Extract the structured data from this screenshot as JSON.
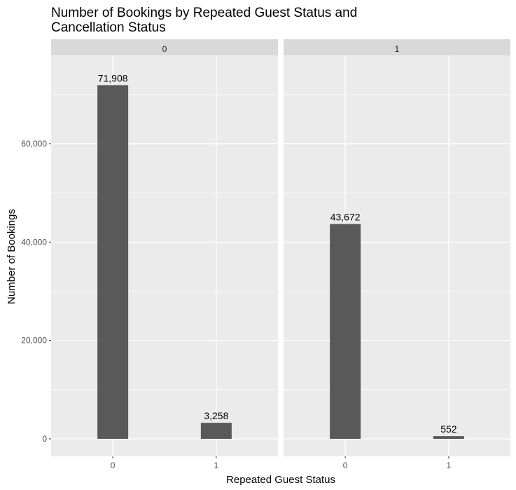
{
  "chart_data": {
    "type": "bar",
    "title_lines": [
      "Number of Bookings by Repeated Guest Status and",
      "Cancellation Status"
    ],
    "xlabel": "Repeated Guest Status",
    "ylabel": "Number of Bookings",
    "ylim": [
      0,
      72000
    ],
    "yticks": [
      0,
      20000,
      40000,
      60000
    ],
    "ytick_labels": [
      "0",
      "20,000",
      "40,000",
      "60,000"
    ],
    "categories": [
      "0",
      "1"
    ],
    "grid": true,
    "facets": [
      {
        "strip_label": "0",
        "values": [
          71908,
          3258
        ],
        "value_labels": [
          "71,908",
          "3,258"
        ]
      },
      {
        "strip_label": "1",
        "values": [
          43672,
          552
        ],
        "value_labels": [
          "43,672",
          "552"
        ]
      }
    ]
  },
  "colors": {
    "panel_background": "#ebebeb",
    "strip_background": "#d9d9d9",
    "gridline": "#ffffff",
    "bar_fill": "#595959"
  }
}
